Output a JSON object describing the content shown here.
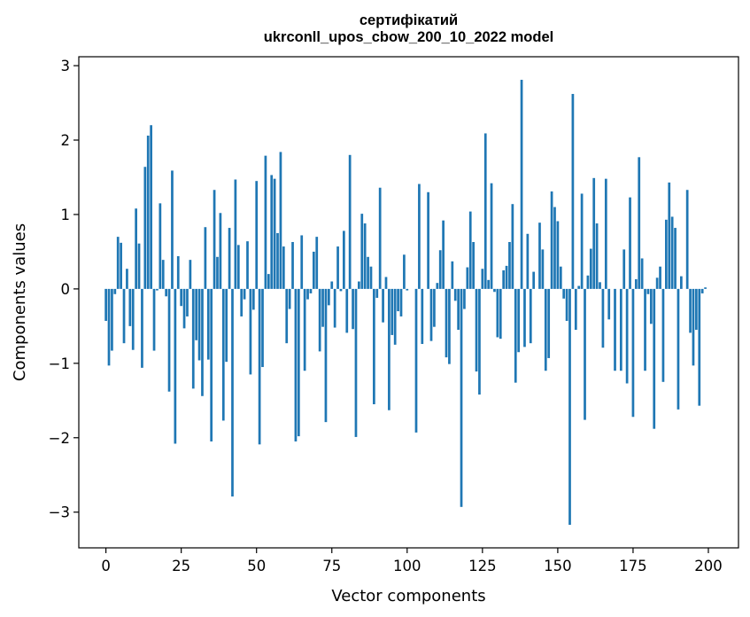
{
  "chart_data": {
    "type": "bar",
    "title": [
      "сертифікатий",
      "ukrconll_upos_cbow_200_10_2022 model"
    ],
    "xlabel": "Vector components",
    "ylabel": "Components values",
    "xlim": [
      -9,
      210
    ],
    "ylim": [
      -3.48,
      3.12
    ],
    "xticks": [
      0,
      25,
      50,
      75,
      100,
      125,
      150,
      175,
      200
    ],
    "yticks": [
      -3,
      -2,
      -1,
      0,
      1,
      2,
      3
    ],
    "bar_color": "#1f77b4",
    "grid": false,
    "values": [
      -0.43,
      -1.03,
      -0.83,
      -0.07,
      0.7,
      0.62,
      -0.73,
      0.27,
      -0.5,
      -0.82,
      1.08,
      0.61,
      -1.06,
      1.64,
      2.06,
      2.2,
      -0.83,
      -0.02,
      1.15,
      0.39,
      -0.1,
      -1.38,
      1.59,
      -2.08,
      0.44,
      -0.23,
      -0.53,
      -0.37,
      0.39,
      -1.34,
      -0.69,
      -0.96,
      -1.44,
      0.83,
      -0.95,
      -2.05,
      1.33,
      0.43,
      1.02,
      -1.77,
      -0.98,
      0.82,
      -2.79,
      1.47,
      0.59,
      -0.37,
      -0.14,
      0.64,
      -1.15,
      -0.28,
      1.45,
      -2.09,
      -1.05,
      1.79,
      0.2,
      1.53,
      1.48,
      0.75,
      1.84,
      0.57,
      -0.73,
      -0.27,
      0.63,
      -2.05,
      -1.98,
      0.72,
      -1.1,
      -0.14,
      -0.06,
      0.5,
      0.7,
      -0.84,
      -0.51,
      -1.79,
      -0.22,
      0.1,
      -0.52,
      0.57,
      -0.03,
      0.78,
      -0.59,
      1.8,
      -0.54,
      -1.99,
      0.1,
      1.01,
      0.88,
      0.43,
      0.3,
      -1.55,
      -0.12,
      1.36,
      -0.45,
      0.16,
      -1.63,
      -0.62,
      -0.75,
      -0.3,
      -0.37,
      0.46,
      -0.02,
      0.0,
      0.0,
      -1.93,
      1.41,
      -0.74,
      0.0,
      1.3,
      -0.7,
      -0.51,
      0.08,
      0.52,
      0.92,
      -0.92,
      -1.01,
      0.37,
      -0.16,
      -0.55,
      -2.93,
      -0.27,
      0.29,
      1.04,
      0.63,
      -1.11,
      -1.42,
      0.27,
      2.09,
      0.12,
      1.42,
      -0.04,
      -0.65,
      -0.67,
      0.25,
      0.31,
      0.63,
      1.14,
      -1.26,
      -0.85,
      2.81,
      -0.78,
      0.74,
      -0.73,
      0.23,
      0.0,
      0.89,
      0.53,
      -1.1,
      -0.93,
      1.31,
      1.1,
      0.91,
      0.3,
      -0.13,
      -0.43,
      -3.17,
      2.62,
      -0.55,
      0.04,
      1.28,
      -1.76,
      0.18,
      0.54,
      1.49,
      0.88,
      0.09,
      -0.79,
      1.48,
      -0.41,
      0.0,
      -1.1,
      0.0,
      -1.1,
      0.53,
      -1.27,
      1.23,
      -1.72,
      0.13,
      1.77,
      0.41,
      -1.1,
      -0.07,
      -0.47,
      -1.88,
      0.15,
      0.3,
      -1.25,
      0.93,
      1.43,
      0.97,
      0.82,
      -1.62,
      0.17,
      0.0,
      1.33,
      -0.59,
      -1.03,
      -0.55,
      -1.57,
      -0.06,
      0.02
    ]
  }
}
